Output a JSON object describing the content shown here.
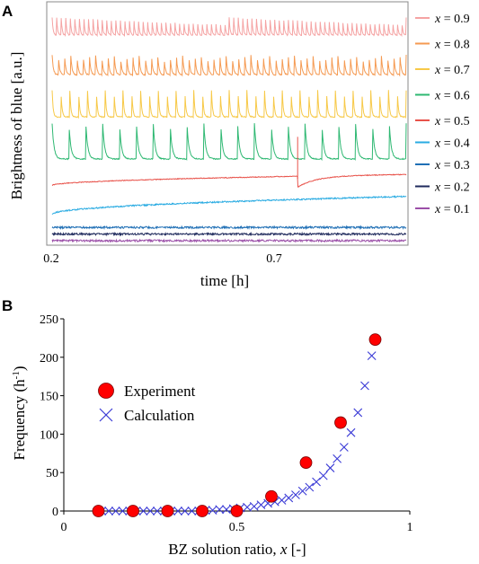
{
  "panel_a": {
    "label": "A",
    "ylabel": "Brightness of blue [a.u.]",
    "xlabel": "time [h]",
    "xticks": [
      "0.2",
      "0.7"
    ]
  },
  "panel_b": {
    "label": "B",
    "ylabel_main": "Frequency (h",
    "ylabel_sup": "-1",
    "ylabel_end": ")",
    "xlabel_main": "BZ solution ratio, ",
    "xlabel_var": "x",
    "xlabel_end": " [-]"
  },
  "chart_data": [
    {
      "type": "line",
      "panel": "A",
      "title": "",
      "xlabel": "time [h]",
      "ylabel": "Brightness of blue [a.u.]",
      "xlim": [
        0.2,
        0.95
      ],
      "xticks": [
        0.2,
        0.7
      ],
      "legend_placement": "right",
      "series": [
        {
          "name": "x = 0.9",
          "label_var": "x",
          "label_rest": " = 0.9",
          "color": "#f5a3a3",
          "behavior": "oscillating",
          "peaks": 78,
          "baseline": 0.93,
          "amplitude": 0.08
        },
        {
          "name": "x = 0.8",
          "label_var": "x",
          "label_rest": " = 0.8",
          "color": "#f59a52",
          "behavior": "oscillating",
          "peaks": 57,
          "baseline": 0.75,
          "amplitude": 0.09
        },
        {
          "name": "x = 0.7",
          "label_var": "x",
          "label_rest": " = 0.7",
          "color": "#f7c948",
          "behavior": "oscillating",
          "peaks": 40,
          "baseline": 0.56,
          "amplitude": 0.12
        },
        {
          "name": "x = 0.6",
          "label_var": "x",
          "label_rest": " = 0.6",
          "color": "#2eb872",
          "behavior": "oscillating",
          "peaks": 21,
          "baseline": 0.37,
          "amplitude": 0.16
        },
        {
          "name": "x = 0.5",
          "label_var": "x",
          "label_rest": " = 0.5",
          "color": "#e8524a",
          "behavior": "single_peak",
          "peak_time": 0.72,
          "baseline": 0.25
        },
        {
          "name": "x = 0.4",
          "label_var": "x",
          "label_rest": " = 0.4",
          "color": "#29abe2",
          "behavior": "drift",
          "baseline": 0.12
        },
        {
          "name": "x = 0.3",
          "label_var": "x",
          "label_rest": " = 0.3",
          "color": "#1f6fb5",
          "behavior": "flat",
          "baseline": 0.06
        },
        {
          "name": "x = 0.2",
          "label_var": "x",
          "label_rest": " = 0.2",
          "color": "#1f2a5c",
          "behavior": "flat",
          "baseline": 0.03
        },
        {
          "name": "x = 0.1",
          "label_var": "x",
          "label_rest": " = 0.1",
          "color": "#9b4fa8",
          "behavior": "flat",
          "baseline": 0.0
        }
      ]
    },
    {
      "type": "scatter",
      "panel": "B",
      "title": "",
      "xlabel": "BZ solution ratio, x [-]",
      "ylabel": "Frequency (h-1)",
      "xlim": [
        0,
        1
      ],
      "ylim": [
        0,
        250
      ],
      "xticks": [
        0,
        0.5,
        1
      ],
      "yticks": [
        0,
        50,
        100,
        150,
        200,
        250
      ],
      "xtick_labels": [
        "0",
        "0.5",
        "1"
      ],
      "ytick_labels": [
        "0",
        "50",
        "100",
        "150",
        "200",
        "250"
      ],
      "legend_placement": "left",
      "series": [
        {
          "name": "Experiment",
          "marker": "circle",
          "color": "#ff0000",
          "x": [
            0.1,
            0.2,
            0.3,
            0.4,
            0.5,
            0.6,
            0.7,
            0.8,
            0.9
          ],
          "y": [
            0,
            0,
            0,
            0,
            0,
            19,
            63,
            115,
            223
          ]
        },
        {
          "name": "Calculation",
          "marker": "x",
          "color": "#3b3bd6",
          "x": [
            0.11,
            0.13,
            0.15,
            0.17,
            0.19,
            0.21,
            0.23,
            0.25,
            0.27,
            0.29,
            0.31,
            0.33,
            0.35,
            0.37,
            0.39,
            0.41,
            0.43,
            0.45,
            0.47,
            0.49,
            0.51,
            0.53,
            0.55,
            0.57,
            0.59,
            0.61,
            0.63,
            0.65,
            0.67,
            0.69,
            0.71,
            0.73,
            0.75,
            0.77,
            0.79,
            0.81,
            0.83,
            0.85,
            0.87,
            0.89
          ],
          "y": [
            0,
            0,
            0,
            0,
            0,
            0,
            0,
            0,
            0,
            0,
            0,
            0,
            0,
            0,
            0,
            1,
            1,
            2,
            2,
            3,
            4,
            5,
            6,
            8,
            10,
            12,
            14,
            17,
            21,
            26,
            31,
            38,
            46,
            56,
            68,
            83,
            102,
            128,
            163,
            202
          ]
        }
      ]
    }
  ]
}
